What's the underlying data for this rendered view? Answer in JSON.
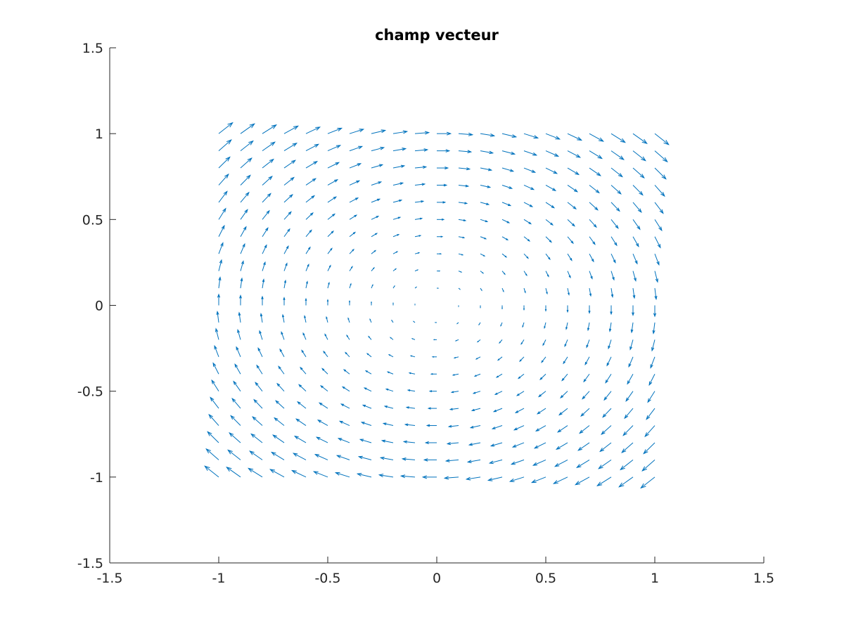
{
  "chart_data": {
    "type": "quiver",
    "title": "champ vecteur",
    "xlabel": "",
    "ylabel": "",
    "xlim": [
      -1.5,
      1.5
    ],
    "ylim": [
      -1.5,
      1.5
    ],
    "xticks": [
      -1.5,
      -1,
      -0.5,
      0,
      0.5,
      1,
      1.5
    ],
    "yticks": [
      -1.5,
      -1,
      -0.5,
      0,
      0.5,
      1,
      1.5
    ],
    "xtick_labels": [
      "-1.5",
      "-1",
      "-0.5",
      "0",
      "0.5",
      "1",
      "1.5"
    ],
    "ytick_labels": [
      "-1.5",
      "-1",
      "-0.5",
      "0",
      "0.5",
      "1",
      "1.5"
    ],
    "grid": false,
    "color": "#0072BD",
    "axis_color": "#262626",
    "field": {
      "u": "y",
      "v": "-x",
      "x_range": [
        -1,
        1
      ],
      "y_range": [
        -1,
        1
      ],
      "step": 0.1,
      "autoscale": 0.9
    }
  }
}
